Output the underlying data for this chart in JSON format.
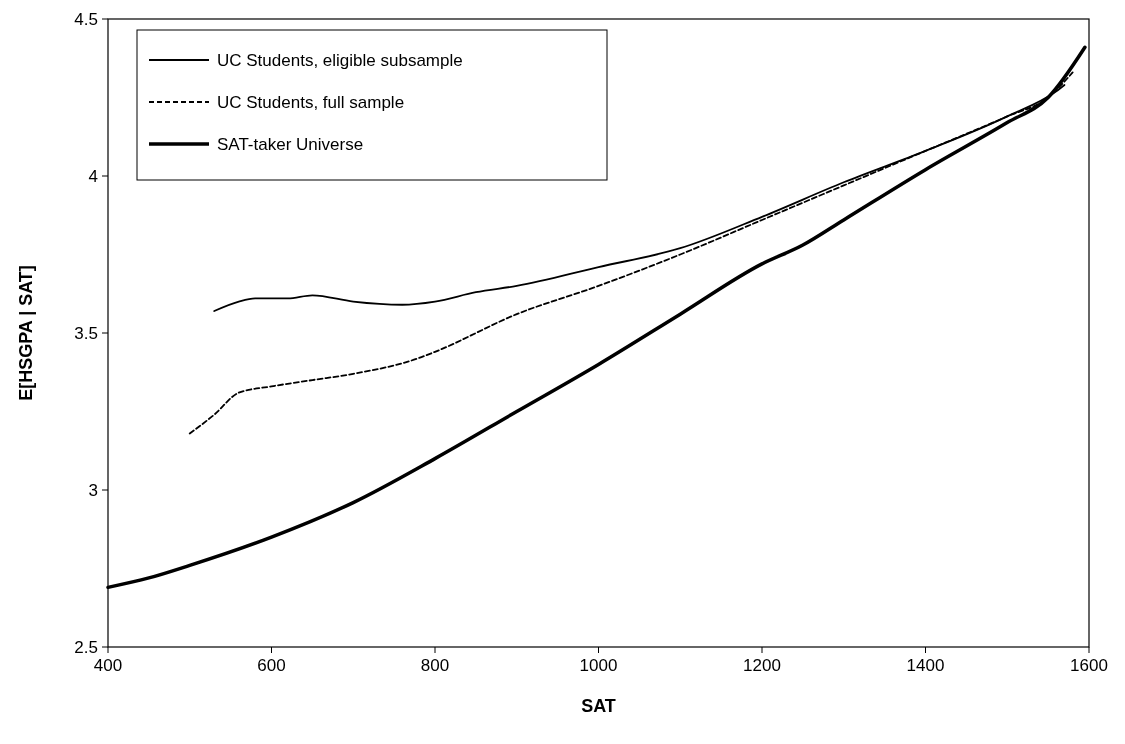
{
  "chart_data": {
    "type": "line",
    "xlabel": "SAT",
    "ylabel": "E[HSGPA | SAT]",
    "xlim": [
      400,
      1600
    ],
    "xticks": [
      400,
      600,
      800,
      1000,
      1200,
      1400,
      1600
    ],
    "ylim": [
      2.5,
      4.5
    ],
    "yticks": [
      2.5,
      3,
      3.5,
      4,
      4.5
    ],
    "grid": false,
    "legend": "top left",
    "series": [
      {
        "name": "UC Students, eligible subsample",
        "color": "#000000",
        "line_style": "solid",
        "x": [
          530,
          560,
          580,
          620,
          650,
          700,
          760,
          800,
          850,
          900,
          1000,
          1100,
          1200,
          1300,
          1400,
          1500,
          1560,
          1570
        ],
        "values": [
          3.57,
          3.6,
          3.61,
          3.61,
          3.62,
          3.6,
          3.59,
          3.6,
          3.63,
          3.65,
          3.71,
          3.77,
          3.87,
          3.98,
          4.08,
          4.19,
          4.27,
          4.29
        ]
      },
      {
        "name": "UC Students, full sample",
        "color": "#000000",
        "line_style": "dashed",
        "x": [
          500,
          530,
          560,
          600,
          650,
          700,
          780,
          800,
          900,
          1000,
          1100,
          1200,
          1300,
          1400,
          1500,
          1550,
          1580
        ],
        "values": [
          3.18,
          3.24,
          3.31,
          3.33,
          3.35,
          3.37,
          3.42,
          3.44,
          3.56,
          3.65,
          3.75,
          3.86,
          3.97,
          4.08,
          4.19,
          4.25,
          4.33
        ]
      },
      {
        "name": "SAT-taker Universe",
        "color": "#000000",
        "line_style": "solid",
        "x": [
          400,
          450,
          500,
          600,
          700,
          800,
          900,
          1000,
          1100,
          1200,
          1250,
          1300,
          1400,
          1500,
          1550,
          1595
        ],
        "values": [
          2.69,
          2.72,
          2.76,
          2.85,
          2.96,
          3.1,
          3.25,
          3.4,
          3.56,
          3.72,
          3.78,
          3.86,
          4.02,
          4.17,
          4.25,
          4.41
        ]
      }
    ]
  }
}
